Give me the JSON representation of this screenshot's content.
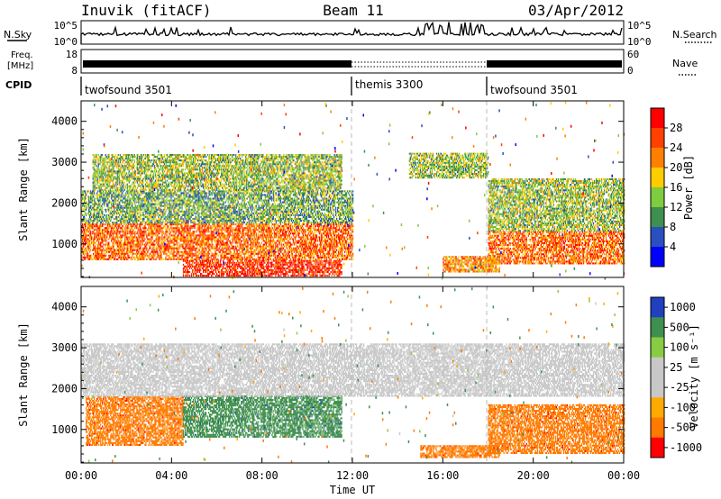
{
  "header": {
    "station": "Inuvik (fitACF)",
    "beam": "Beam 11",
    "date": "03/Apr/2012"
  },
  "status_panel": {
    "nsky_label": "N.Sky",
    "nsky_ticks": [
      "10^5",
      "10^0"
    ],
    "nsearch_label": "N.Search",
    "nsearch_ticks": [
      "10^5",
      "10^0"
    ],
    "freq_label": "Freq.",
    "freq_unit": "[MHz]",
    "freq_ticks": [
      "18",
      "8"
    ],
    "nave_label": "Nave",
    "nave_ticks": [
      "60",
      "0"
    ],
    "cpid_label": "CPID",
    "cpid_segments": [
      {
        "name": "twofsound",
        "id": "3501",
        "start_hour": 0,
        "end_hour": 12
      },
      {
        "name": "themis",
        "id": "3300",
        "start_hour": 12,
        "end_hour": 18
      },
      {
        "name": "twofsound",
        "id": "3501",
        "start_hour": 18,
        "end_hour": 24
      }
    ]
  },
  "chart_data": [
    {
      "type": "heatmap",
      "title": "",
      "xlabel": "Time UT",
      "ylabel": "Slant Range [km]",
      "x_ticks": [
        "00:00",
        "04:00",
        "08:00",
        "12:00",
        "16:00",
        "20:00",
        "00:00"
      ],
      "y_ticks": [
        "1000",
        "2000",
        "3000",
        "4000"
      ],
      "xlim_hours": [
        0,
        24
      ],
      "ylim_km": [
        180,
        4500
      ],
      "colorbar": {
        "label": "Power [dB]",
        "ticks": [
          "4",
          "8",
          "12",
          "16",
          "20",
          "24",
          "28"
        ],
        "colors": [
          "#0000ff",
          "#2a4fbf",
          "#3f8f4f",
          "#7fcc3f",
          "#ffcc00",
          "#ff8000",
          "#ff4000",
          "#ff0000"
        ]
      },
      "regions": [
        {
          "t0": 0.0,
          "t1": 12.0,
          "r0": 600,
          "r1": 1500,
          "value": 24
        },
        {
          "t0": 4.5,
          "t1": 11.5,
          "r0": 200,
          "r1": 600,
          "value": 28
        },
        {
          "t0": 0.0,
          "t1": 12.0,
          "r0": 1500,
          "r1": 2300,
          "value": 12
        },
        {
          "t0": 0.5,
          "t1": 11.5,
          "r0": 2300,
          "r1": 3200,
          "value": 14
        },
        {
          "t0": 14.5,
          "t1": 18.0,
          "r0": 2600,
          "r1": 3200,
          "value": 14
        },
        {
          "t0": 18.0,
          "t1": 24.0,
          "r0": 500,
          "r1": 1300,
          "value": 24
        },
        {
          "t0": 16.0,
          "t1": 18.5,
          "r0": 300,
          "r1": 700,
          "value": 22
        },
        {
          "t0": 18.0,
          "t1": 24.0,
          "r0": 1300,
          "r1": 2600,
          "value": 14
        }
      ]
    },
    {
      "type": "heatmap",
      "title": "",
      "xlabel": "Time UT",
      "ylabel": "Slant Range [km]",
      "x_ticks": [
        "00:00",
        "04:00",
        "08:00",
        "12:00",
        "16:00",
        "20:00",
        "00:00"
      ],
      "y_ticks": [
        "1000",
        "2000",
        "3000",
        "4000"
      ],
      "xlim_hours": [
        0,
        24
      ],
      "ylim_km": [
        180,
        4500
      ],
      "colorbar": {
        "label": "Velocity [m s⁻¹]",
        "ticks": [
          "1000",
          "500",
          "100",
          "25",
          "-25",
          "-100",
          "-500",
          "-1000"
        ],
        "colors": [
          "#2040c0",
          "#3f8f4f",
          "#88cc44",
          "#c8c8c8",
          "#c8c8c8",
          "#ffaa00",
          "#ff7a00",
          "#ff0000"
        ]
      },
      "regions": [
        {
          "t0": 0.2,
          "t1": 4.5,
          "r0": 600,
          "r1": 1800,
          "value": -300
        },
        {
          "t0": 4.5,
          "t1": 11.5,
          "r0": 800,
          "r1": 1800,
          "value": 300
        },
        {
          "t0": 0.0,
          "t1": 24.0,
          "r0": 1800,
          "r1": 3100,
          "value": 0
        },
        {
          "t0": 18.0,
          "t1": 24.0,
          "r0": 400,
          "r1": 1600,
          "value": -300
        },
        {
          "t0": 15.0,
          "t1": 18.5,
          "r0": 300,
          "r1": 600,
          "value": -300
        }
      ]
    }
  ]
}
